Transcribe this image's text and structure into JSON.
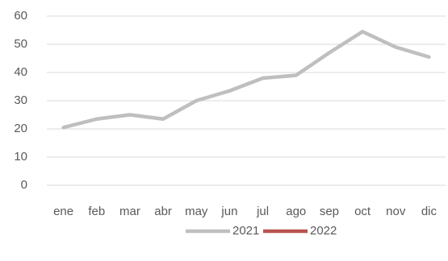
{
  "chart_data": {
    "type": "line",
    "categories": [
      "ene",
      "feb",
      "mar",
      "abr",
      "may",
      "jun",
      "jul",
      "ago",
      "sep",
      "oct",
      "nov",
      "dic"
    ],
    "series": [
      {
        "name": "2021",
        "color": "#bfbfbf",
        "values": [
          20.5,
          23.5,
          25,
          23.5,
          30,
          33.5,
          38,
          39,
          47,
          54.5,
          49,
          45.5
        ]
      },
      {
        "name": "2022",
        "color": "#b85450",
        "values": [
          null,
          null,
          null,
          null,
          null,
          null,
          null,
          null,
          null,
          null,
          null,
          null
        ]
      }
    ],
    "ylim": [
      0,
      60
    ],
    "yticks": [
      0,
      10,
      20,
      30,
      40,
      50,
      60
    ],
    "grid": true,
    "legend": "bottom"
  }
}
